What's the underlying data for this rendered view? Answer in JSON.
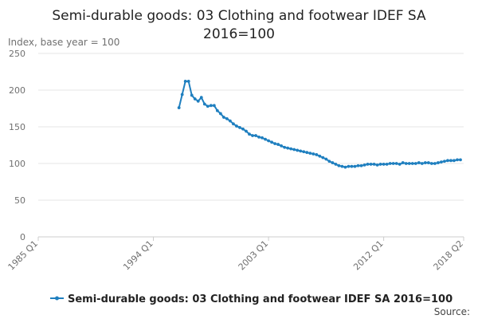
{
  "chart_data": {
    "type": "line",
    "title_line1": "Semi-durable goods: 03 Clothing and footwear IDEF SA",
    "title_line2": "2016=100",
    "ylabel": "Index, base year = 100",
    "xlabel": "",
    "ylim": [
      0,
      250
    ],
    "yticks": [
      "0",
      "50",
      "100",
      "150",
      "200",
      "250"
    ],
    "xticks": [
      "1985 Q1",
      "1994 Q1",
      "2003 Q1",
      "2012 Q1",
      "2018 Q2"
    ],
    "x_start": "1985 Q1",
    "grid": true,
    "legend_position": "bottom",
    "source_label": "Source:",
    "series": [
      {
        "name": "Semi-durable goods: 03 Clothing and footwear IDEF SA 2016=100",
        "color": "#1f7fbf",
        "start": "1996 Q1",
        "values": [
          176,
          194,
          212,
          212,
          193,
          188,
          185,
          190,
          181,
          178,
          179,
          179,
          172,
          168,
          163,
          161,
          158,
          154,
          151,
          149,
          147,
          144,
          140,
          138,
          138,
          136,
          135,
          133,
          131,
          129,
          127,
          126,
          124,
          122,
          121,
          120,
          119,
          118,
          117,
          116,
          115,
          114,
          113,
          112,
          110,
          108,
          106,
          103,
          101,
          99,
          97,
          96,
          95,
          96,
          96,
          96,
          97,
          97,
          98,
          99,
          99,
          99,
          98,
          99,
          99,
          99,
          100,
          100,
          100,
          99,
          101,
          100,
          100,
          100,
          100,
          101,
          100,
          101,
          101,
          100,
          100,
          101,
          102,
          103,
          104,
          104,
          104,
          105,
          105
        ]
      }
    ]
  }
}
